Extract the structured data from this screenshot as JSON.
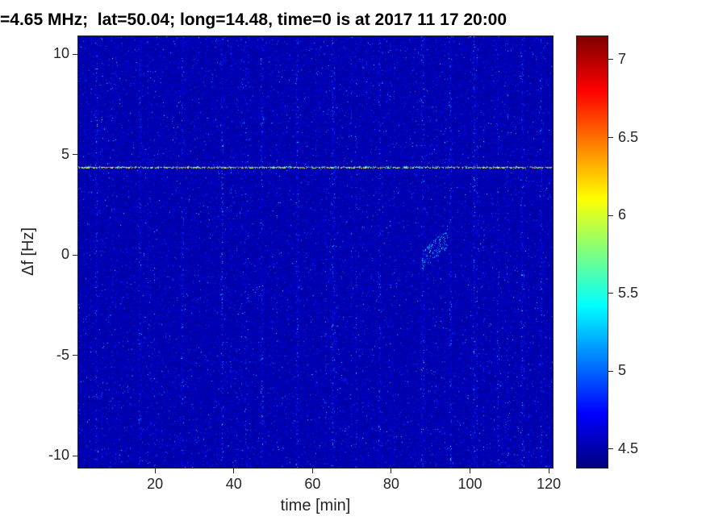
{
  "figure": {
    "bg_color": "#ffffff",
    "axis_color": "#262626",
    "title_color": "#000000"
  },
  "chart_data": {
    "type": "heatmap",
    "title": "=4.65 MHz;  lat=50.04; long=14.48, time=0 is at 2017 11 17 20:00",
    "xlabel": "time [min]",
    "ylabel": "Δf [Hz]",
    "xlim": [
      0.5,
      121
    ],
    "ylim": [
      -10.6,
      10.9
    ],
    "xticks": [
      20,
      40,
      60,
      80,
      100,
      120
    ],
    "yticks": [
      -10,
      -5,
      0,
      5,
      10
    ],
    "grid": false,
    "colormap": "jet",
    "clim": [
      4.38,
      7.15
    ],
    "colorbar_ticks": [
      4.5,
      5,
      5.5,
      6,
      6.5,
      7
    ],
    "colorbar_position": "right",
    "noise_floor_level": 4.45,
    "noise_speckle_max": 5.6,
    "signal_line": {
      "freq_hz": 4.4,
      "level_min": 6.0,
      "level_max": 6.8,
      "appearance": "narrow dashed speckled yellow horizontal line spanning full time range"
    },
    "faint_patch": {
      "time_min": 91,
      "freq_hz": 0.3,
      "level": 5.2,
      "appearance": "small faint cyan diagonal speckle cluster"
    },
    "stripe_times_min": [
      5,
      16,
      27,
      37,
      47,
      56,
      65,
      77,
      88,
      95,
      101,
      107,
      113,
      118
    ],
    "annotations": "Doppler spectrogram: dark-blue noise background with sparse cyan/green speckles and faint vertical striping"
  }
}
